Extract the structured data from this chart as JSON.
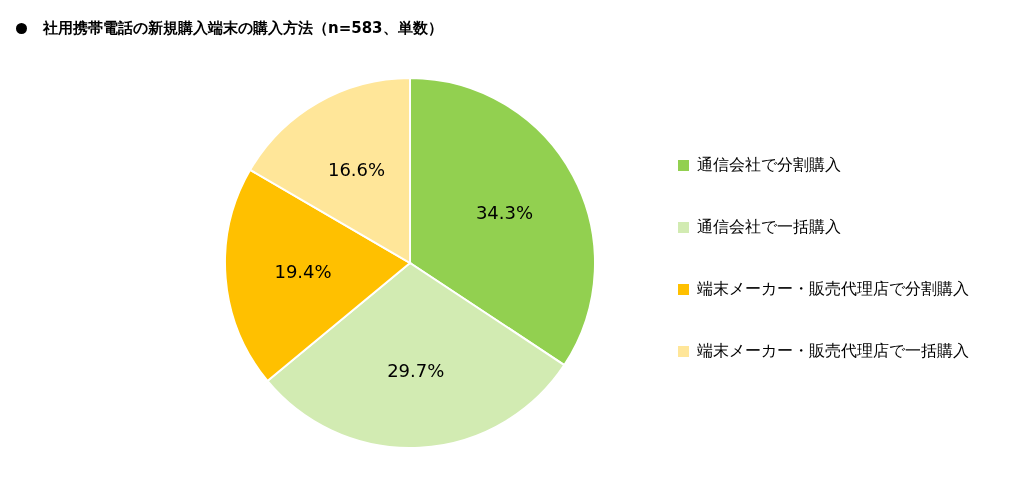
{
  "chart_data": {
    "type": "pie",
    "title": "社用携帯電話の新規購入端末の購入方法（n=583、単数）",
    "categories": [
      "通信会社で分割購入",
      "通信会社で一括購入",
      "端末メーカー・販売代理店で分割購入",
      "端末メーカー・販売代理店で一括購入"
    ],
    "values": [
      34.3,
      29.7,
      19.4,
      16.6
    ],
    "value_labels": [
      "34.3%",
      "29.7%",
      "19.4%",
      "16.6%"
    ],
    "colors": [
      "#92d050",
      "#d2ebb2",
      "#ffc000",
      "#ffe699"
    ],
    "legend": "right"
  }
}
